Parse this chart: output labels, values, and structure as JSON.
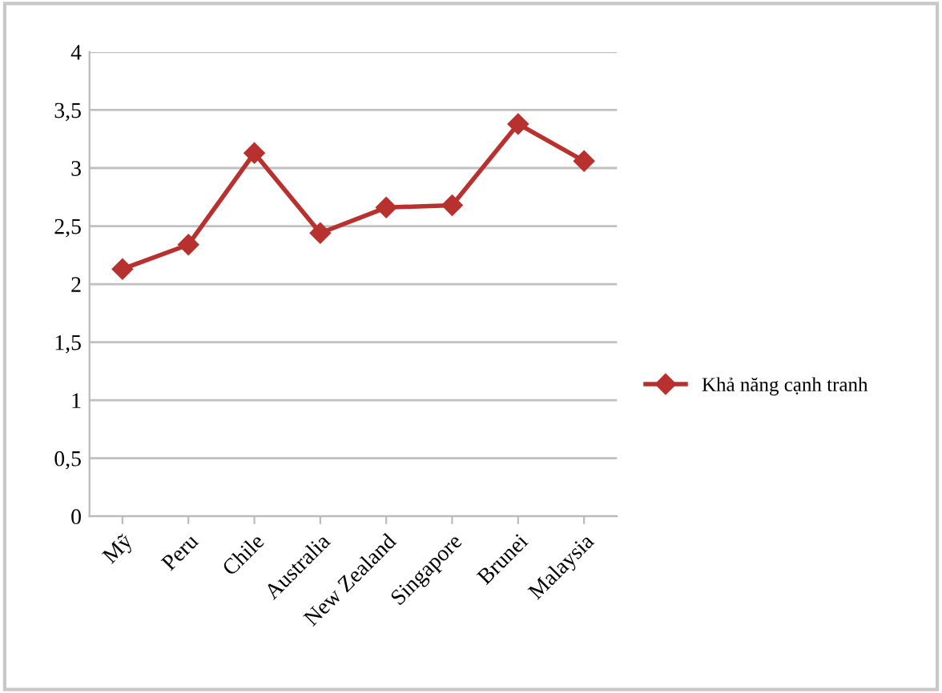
{
  "chart_data": {
    "type": "line",
    "categories": [
      "Mỹ",
      "Peru",
      "Chile",
      "Australia",
      "New Zealand",
      "Singapore",
      "Brunei",
      "Malaysia"
    ],
    "series": [
      {
        "name": "Khả năng cạnh tranh",
        "color": "#b8312f",
        "values": [
          2.13,
          2.34,
          3.13,
          2.44,
          2.66,
          2.68,
          3.38,
          3.06
        ]
      }
    ],
    "ylim": [
      0,
      4
    ],
    "yticks": [
      0,
      {
        "value": 0.5,
        "label": "0,5"
      },
      1,
      {
        "value": 1.5,
        "label": "1,5"
      },
      2,
      {
        "value": 2.5,
        "label": "2,5"
      },
      3,
      {
        "value": 3.5,
        "label": "3,5"
      },
      4
    ],
    "grid": "y",
    "legend": "right",
    "marker": "diamond",
    "line_style": "solid"
  }
}
